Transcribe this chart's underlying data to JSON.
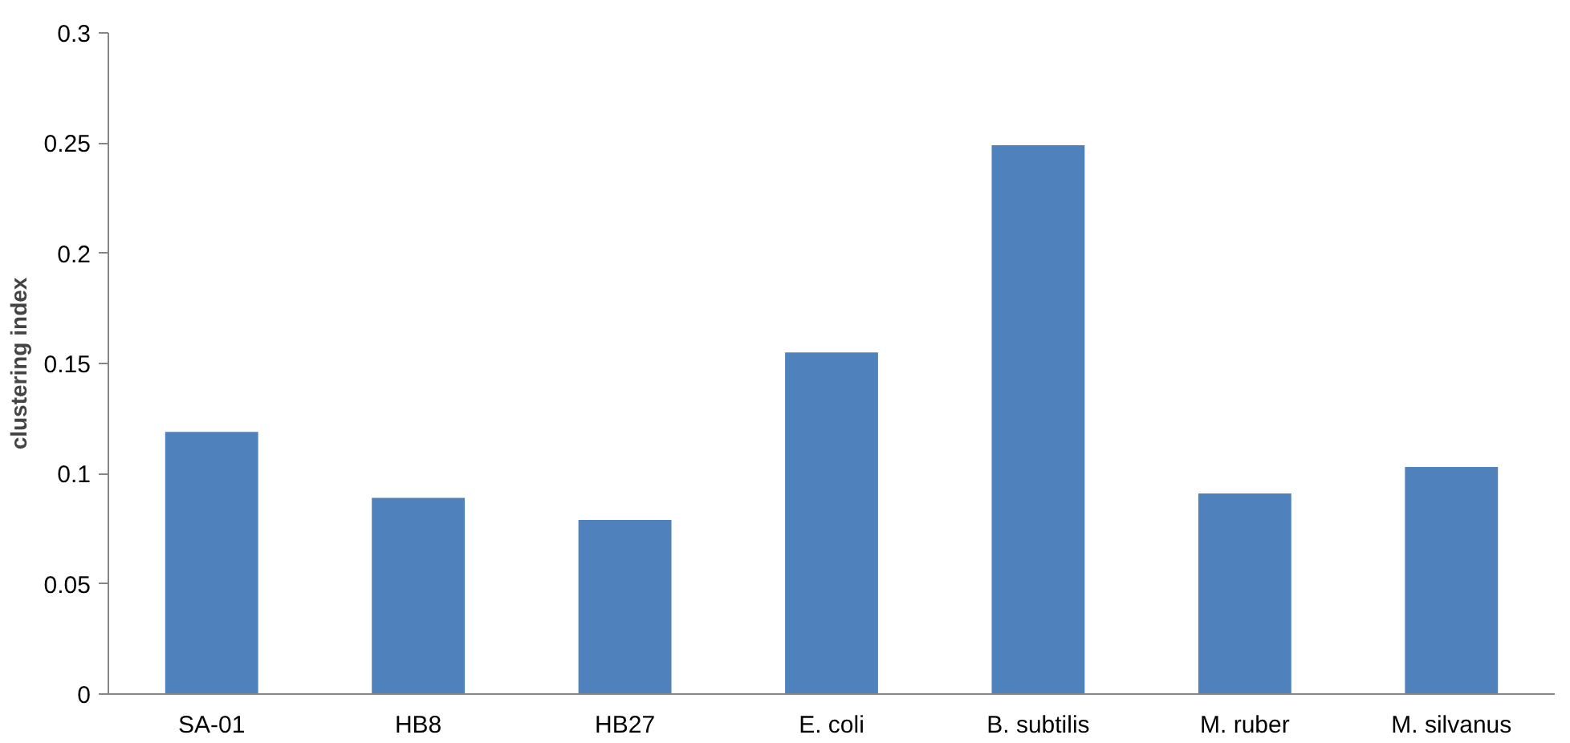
{
  "chart_data": {
    "type": "bar",
    "ylabel": "clustering index",
    "categories": [
      "SA-01",
      "HB8",
      "HB27",
      "E. coli",
      "B. subtilis",
      "M. ruber",
      "M. silvanus"
    ],
    "values": [
      0.119,
      0.089,
      0.079,
      0.155,
      0.249,
      0.091,
      0.103
    ],
    "color": "#4f81bd",
    "ylim": [
      0,
      0.3
    ],
    "yticks": [
      0,
      0.05,
      0.1,
      0.15,
      0.2,
      0.25,
      0.3
    ],
    "grid": false
  }
}
